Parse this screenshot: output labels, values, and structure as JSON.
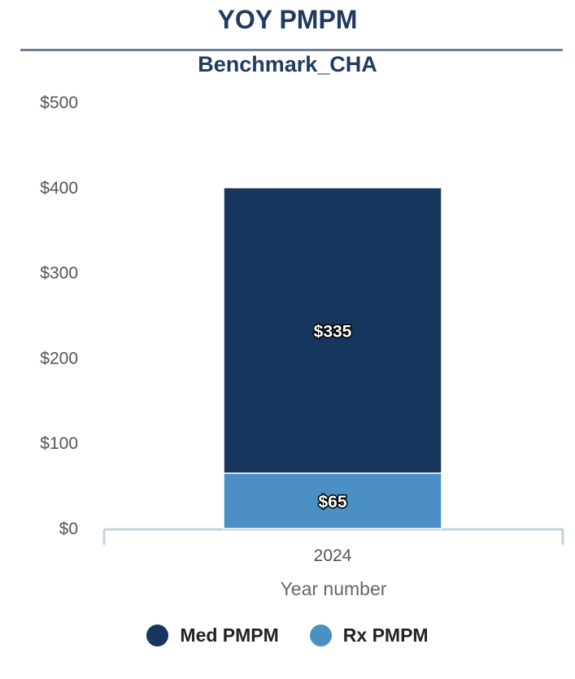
{
  "chart_data": {
    "type": "bar",
    "stacked": true,
    "title": "YOY PMPM",
    "subtitle": "Benchmark_CHA",
    "xlabel": "Year number",
    "ylabel": "",
    "categories": [
      "2024"
    ],
    "series": [
      {
        "name": "Rx PMPM",
        "values": [
          65
        ],
        "color": "#4a90c4",
        "labels": [
          "$65"
        ]
      },
      {
        "name": "Med PMPM",
        "values": [
          335
        ],
        "color": "#17365d",
        "labels": [
          "$335"
        ]
      }
    ],
    "ylim": [
      0,
      500
    ],
    "yticks": [
      0,
      100,
      200,
      300,
      400,
      500
    ],
    "ytick_labels": [
      "$0",
      "$100",
      "$200",
      "$300",
      "$400",
      "$500"
    ],
    "grid": false,
    "legend_position": "bottom"
  },
  "legend": {
    "items": [
      {
        "label": "Med PMPM",
        "color": "#17365d"
      },
      {
        "label": "Rx PMPM",
        "color": "#4a90c4"
      }
    ]
  }
}
